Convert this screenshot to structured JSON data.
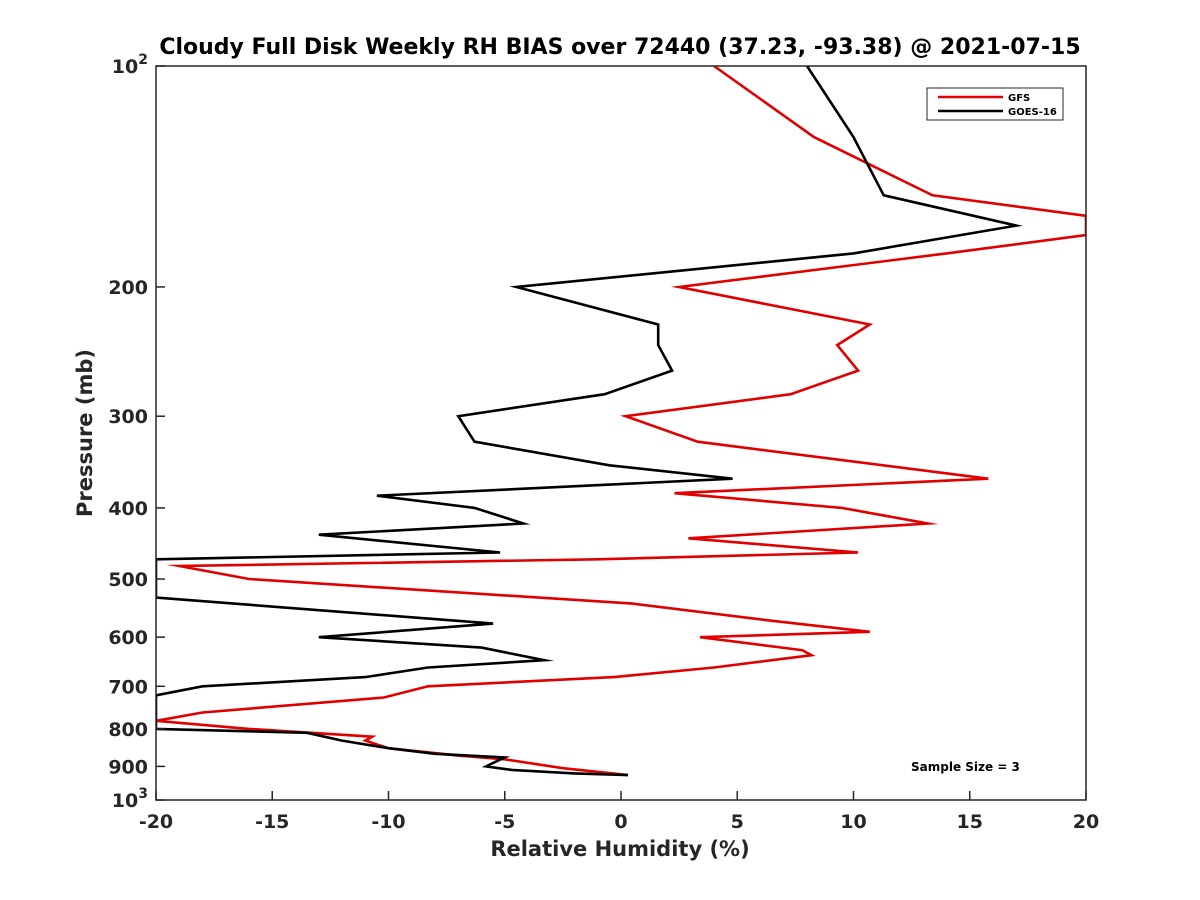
{
  "chart_data": {
    "type": "line",
    "title": "Cloudy Full Disk Weekly RH BIAS over 72440 (37.23, -93.38) @ 2021-07-15",
    "xlabel": "Relative Humidity (%)",
    "ylabel": "Pressure (mb)",
    "xlim": [
      -20,
      20
    ],
    "ylim": [
      100,
      1000
    ],
    "y_scale": "log",
    "y_reversed": true,
    "x_ticks": [
      -20,
      -15,
      -10,
      -5,
      0,
      5,
      10,
      15,
      20
    ],
    "x_tick_labels": [
      "-20",
      "-15",
      "-10",
      "-5",
      "0",
      "5",
      "10",
      "15",
      "20"
    ],
    "y_ticks": [
      {
        "value": 100,
        "base": "10",
        "exp": "2"
      },
      {
        "value": 200,
        "label": "200"
      },
      {
        "value": 300,
        "label": "300"
      },
      {
        "value": 400,
        "label": "400"
      },
      {
        "value": 500,
        "label": "500"
      },
      {
        "value": 600,
        "label": "600"
      },
      {
        "value": 700,
        "label": "700"
      },
      {
        "value": 800,
        "label": "800"
      },
      {
        "value": 900,
        "label": "900"
      },
      {
        "value": 1000,
        "base": "10",
        "exp": "3"
      }
    ],
    "legend_position": "top-right",
    "annotation": "Sample Size = 3",
    "series": [
      {
        "name": "GFS",
        "color": "#e00000",
        "points": [
          [
            4.0,
            100
          ],
          [
            8.3,
            125
          ],
          [
            13.4,
            150
          ],
          [
            20.0,
            160
          ],
          [
            20.0,
            170
          ],
          [
            14.0,
            180
          ],
          [
            2.5,
            200
          ],
          [
            10.7,
            225
          ],
          [
            9.3,
            240
          ],
          [
            10.2,
            260
          ],
          [
            7.3,
            280
          ],
          [
            0.2,
            300
          ],
          [
            3.3,
            325
          ],
          [
            15.8,
            365
          ],
          [
            2.3,
            382
          ],
          [
            9.5,
            400
          ],
          [
            13.2,
            420
          ],
          [
            2.9,
            440
          ],
          [
            10.2,
            460
          ],
          [
            -1.0,
            470
          ],
          [
            -19.0,
            480
          ],
          [
            -16.0,
            500
          ],
          [
            0.5,
            540
          ],
          [
            6.5,
            570
          ],
          [
            10.7,
            590
          ],
          [
            3.4,
            600
          ],
          [
            7.8,
            625
          ],
          [
            8.2,
            635
          ],
          [
            4.0,
            660
          ],
          [
            -0.3,
            680
          ],
          [
            -8.3,
            700
          ],
          [
            -10.2,
            725
          ],
          [
            -18.0,
            760
          ],
          [
            -20.0,
            780
          ],
          [
            -16.0,
            800
          ],
          [
            -10.7,
            820
          ],
          [
            -11.0,
            830
          ],
          [
            -10.0,
            850
          ],
          [
            -7.0,
            870
          ],
          [
            -5.0,
            880
          ],
          [
            -2.5,
            905
          ],
          [
            0.3,
            925
          ]
        ]
      },
      {
        "name": "GOES-16",
        "color": "#000000",
        "points": [
          [
            8.0,
            100
          ],
          [
            10.0,
            125
          ],
          [
            11.3,
            150
          ],
          [
            17.0,
            165
          ],
          [
            10.0,
            180
          ],
          [
            -4.5,
            200
          ],
          [
            1.6,
            225
          ],
          [
            1.6,
            240
          ],
          [
            2.2,
            260
          ],
          [
            -0.7,
            280
          ],
          [
            -7.0,
            300
          ],
          [
            -6.3,
            325
          ],
          [
            -0.5,
            350
          ],
          [
            4.8,
            365
          ],
          [
            -10.5,
            385
          ],
          [
            -6.3,
            400
          ],
          [
            -4.2,
            420
          ],
          [
            -13.0,
            435
          ],
          [
            -5.2,
            460
          ],
          [
            -20.0,
            470
          ],
          [
            -20.0,
            530
          ],
          [
            -5.5,
            575
          ],
          [
            -13.0,
            600
          ],
          [
            -6.0,
            620
          ],
          [
            -3.3,
            645
          ],
          [
            -8.3,
            660
          ],
          [
            -11.0,
            680
          ],
          [
            -18.0,
            700
          ],
          [
            -20.0,
            720
          ],
          [
            -20.0,
            800
          ],
          [
            -13.5,
            810
          ],
          [
            -12.0,
            830
          ],
          [
            -10.0,
            850
          ],
          [
            -8.0,
            865
          ],
          [
            -5.0,
            875
          ],
          [
            -5.5,
            890
          ],
          [
            -5.8,
            900
          ],
          [
            -4.7,
            910
          ],
          [
            -2.0,
            920
          ],
          [
            0.3,
            925
          ]
        ]
      }
    ]
  }
}
